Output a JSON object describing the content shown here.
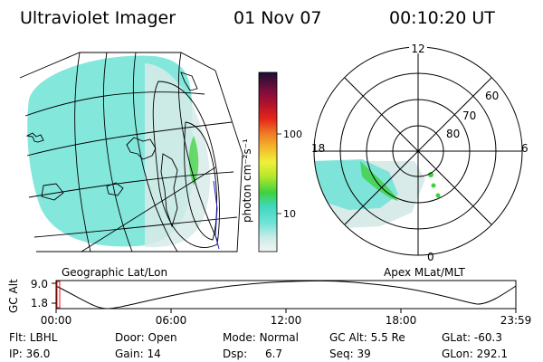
{
  "header": {
    "title": "Ultraviolet Imager",
    "date": "01 Nov 07",
    "time": "00:10:20 UT"
  },
  "colorbar": {
    "unit_label": "photon cm⁻²s⁻¹",
    "ticks": [
      "100",
      "10"
    ]
  },
  "left_panel": {
    "caption": "Geographic Lat/Lon"
  },
  "right_panel": {
    "caption": "Apex MLat/MLT",
    "mlt_labels": [
      "12",
      "18",
      "6",
      "0"
    ],
    "mlat_labels": [
      "60",
      "70",
      "80"
    ]
  },
  "orbit_plot": {
    "y_label": "GC Alt",
    "y_ticks": [
      "9.0",
      "1.8"
    ],
    "x_ticks": [
      "00:00",
      "06:00",
      "12:00",
      "18:00",
      "23:59"
    ]
  },
  "info": {
    "row1": [
      {
        "label": "Flt:",
        "value": "LBHL"
      },
      {
        "label": "Door:",
        "value": "Open"
      },
      {
        "label": "Mode:",
        "value": "Normal"
      },
      {
        "label": "GC Alt:",
        "value": "5.5 Re"
      },
      {
        "label": "GLat:",
        "value": "-60.3"
      }
    ],
    "row2": [
      {
        "label": "IP:",
        "value": "36.0"
      },
      {
        "label": "Gain:",
        "value": "14"
      },
      {
        "label": "Dsp:",
        "value": "6.7"
      },
      {
        "label": "Seq:",
        "value": "39"
      },
      {
        "label": "GLon:",
        "value": "292.1"
      }
    ]
  },
  "colors": {
    "aurora_cyan": "#6fe3d6",
    "aurora_light": "#d8ebe9",
    "green_spot": "#3fd13f"
  }
}
